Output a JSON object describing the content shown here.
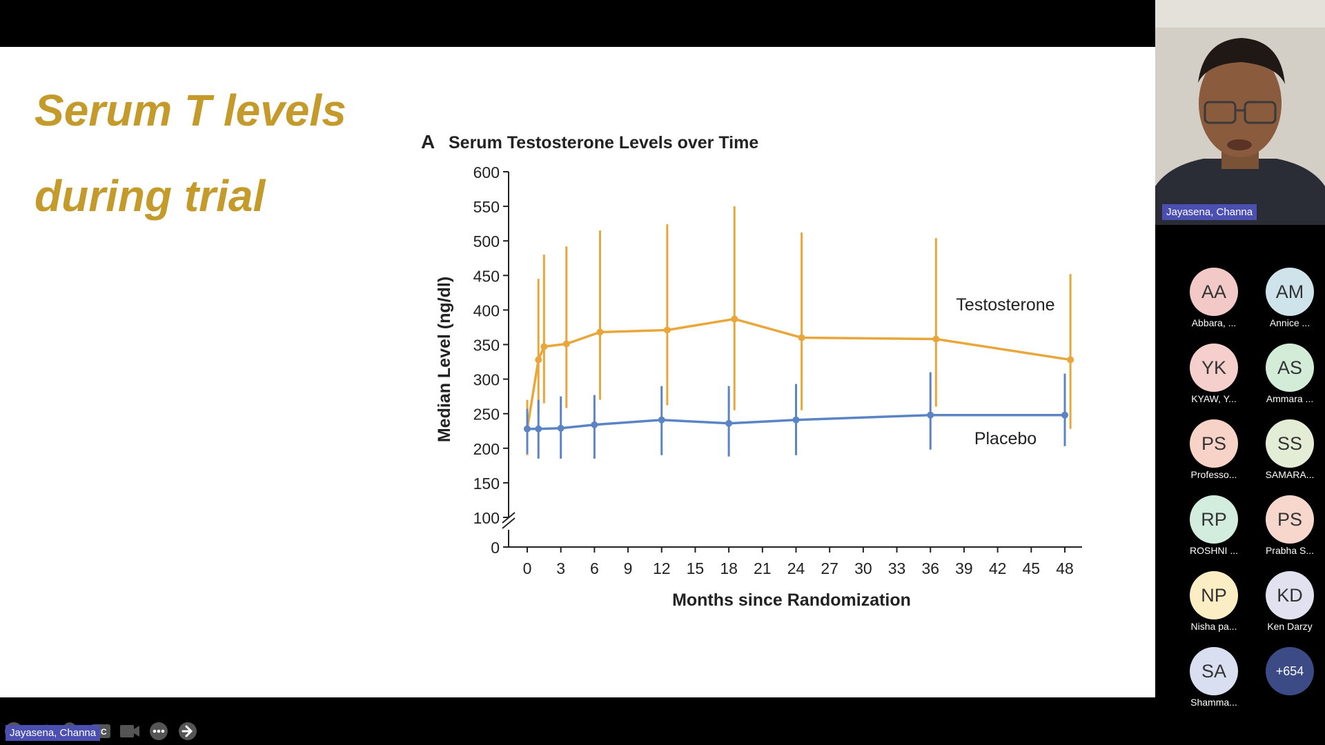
{
  "slide": {
    "title_line1": "Serum T levels",
    "title_line2": "during trial",
    "accent_color": "#c49a2a"
  },
  "chart_data": {
    "type": "line",
    "panel_label": "A",
    "title": "Serum Testosterone Levels over Time",
    "xlabel": "Months since Randomization",
    "ylabel": "Median Level (ng/dl)",
    "x_ticks": [
      "0",
      "3",
      "6",
      "9",
      "12",
      "15",
      "18",
      "21",
      "24",
      "27",
      "30",
      "33",
      "36",
      "39",
      "42",
      "45",
      "48"
    ],
    "y_ticks": [
      "0",
      "100",
      "150",
      "200",
      "250",
      "300",
      "350",
      "400",
      "450",
      "500",
      "550",
      "600"
    ],
    "ylim": [
      100,
      600
    ],
    "axis_break": "between 0 and 100",
    "series": [
      {
        "name": "Testosterone",
        "color": "#e9a63a",
        "points": [
          {
            "x": 0,
            "y": 228,
            "low": 190,
            "high": 270
          },
          {
            "x": 1,
            "y": 328,
            "low": 250,
            "high": 445
          },
          {
            "x": 1.5,
            "y": 347,
            "low": 265,
            "high": 480
          },
          {
            "x": 3.5,
            "y": 351,
            "low": 258,
            "high": 492
          },
          {
            "x": 6.5,
            "y": 368,
            "low": 270,
            "high": 515
          },
          {
            "x": 12.5,
            "y": 371,
            "low": 262,
            "high": 524
          },
          {
            "x": 18.5,
            "y": 387,
            "low": 255,
            "high": 550
          },
          {
            "x": 24.5,
            "y": 360,
            "low": 255,
            "high": 512
          },
          {
            "x": 36.5,
            "y": 358,
            "low": 260,
            "high": 504
          },
          {
            "x": 48.5,
            "y": 328,
            "low": 228,
            "high": 452
          }
        ]
      },
      {
        "name": "Placebo",
        "color": "#5b84c4",
        "points": [
          {
            "x": 0,
            "y": 228,
            "low": 192,
            "high": 257
          },
          {
            "x": 1,
            "y": 228,
            "low": 185,
            "high": 270
          },
          {
            "x": 3,
            "y": 229,
            "low": 185,
            "high": 275
          },
          {
            "x": 6,
            "y": 234,
            "low": 185,
            "high": 277
          },
          {
            "x": 12,
            "y": 241,
            "low": 190,
            "high": 290
          },
          {
            "x": 18,
            "y": 236,
            "low": 188,
            "high": 290
          },
          {
            "x": 24,
            "y": 241,
            "low": 190,
            "high": 293
          },
          {
            "x": 36,
            "y": 248,
            "low": 198,
            "high": 310
          },
          {
            "x": 48,
            "y": 248,
            "low": 203,
            "high": 308
          }
        ]
      }
    ]
  },
  "speaker": {
    "name": "Jayasena, Channa"
  },
  "bottom_label": "Jayasena, Channa",
  "toolbar": [
    {
      "icon": "arrow-left-icon"
    },
    {
      "icon": "pen-icon"
    },
    {
      "icon": "magnifier-icon"
    },
    {
      "icon": "cc-icon",
      "label": "CC"
    },
    {
      "icon": "video-camera-icon"
    },
    {
      "icon": "more-icon"
    },
    {
      "icon": "arrow-right-icon"
    }
  ],
  "participants": [
    {
      "initials": "AA",
      "name": "Abbara, ...",
      "color": "#f2c9c6"
    },
    {
      "initials": "AM",
      "name": "Annice ...",
      "color": "#cfe3ea"
    },
    {
      "initials": "YK",
      "name": "KYAW, Y...",
      "color": "#f4cfcc"
    },
    {
      "initials": "AS",
      "name": "Ammara ...",
      "color": "#d2ecd8"
    },
    {
      "initials": "PS",
      "name": "Professo...",
      "color": "#f7d3c7"
    },
    {
      "initials": "SS",
      "name": "SAMARA...",
      "color": "#e3ecd5"
    },
    {
      "initials": "RP",
      "name": "ROSHNI ...",
      "color": "#d2ecdd"
    },
    {
      "initials": "PS",
      "name": "Prabha S...",
      "color": "#f7d6cc"
    },
    {
      "initials": "NP",
      "name": "Nisha pa...",
      "color": "#fbedc4"
    },
    {
      "initials": "KD",
      "name": "Ken Darzy",
      "color": "#e1e1ef"
    },
    {
      "initials": "SA",
      "name": "Shamma...",
      "color": "#d9dff0"
    },
    {
      "initials": "+654",
      "name": "",
      "color": "#3c4a86"
    }
  ]
}
